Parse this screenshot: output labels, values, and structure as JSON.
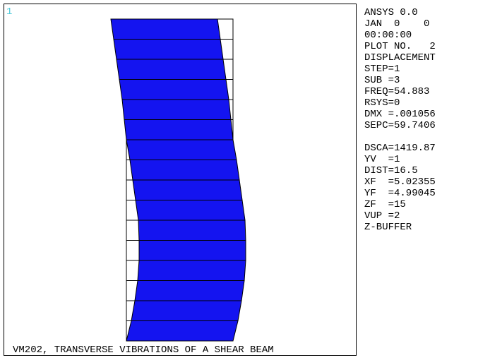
{
  "window_number": "1",
  "title": "VM202, TRANSVERSE VIBRATIONS OF A SHEAR BEAM",
  "info_lines": [
    "ANSYS 0.0",
    "JAN  0    0",
    "00:00:00",
    "PLOT NO.   2",
    "DISPLACEMENT",
    "STEP=1",
    "SUB =3",
    "FREQ=54.883",
    "RSYS=0",
    "DMX =.001056",
    "SEPC=59.7406"
  ],
  "view_lines": [
    "DSCA=1419.87",
    "YV  =1",
    "DIST=16.5",
    "XF  =5.02355",
    "YF  =4.99045",
    "ZF  =15",
    "VUP =2",
    "Z-BUFFER"
  ]
}
